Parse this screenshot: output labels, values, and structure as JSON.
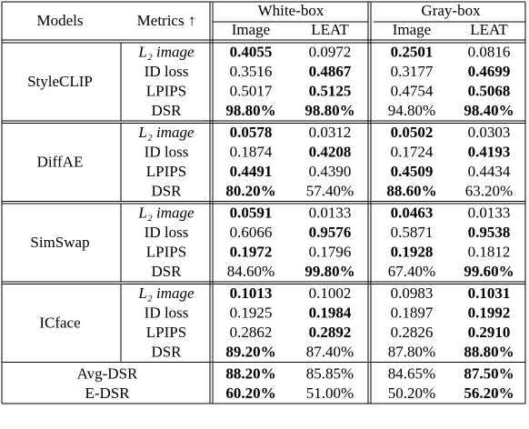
{
  "header": {
    "models": "Models",
    "metrics": "Metrics ↑",
    "groups": [
      "White-box",
      "Gray-box"
    ],
    "columns": [
      "Image",
      "LEAT",
      "Image",
      "LEAT"
    ]
  },
  "groups": [
    {
      "model": "StyleCLIP",
      "rows": [
        {
          "metric": "L₂ image",
          "values": [
            "0.4055",
            "0.0972",
            "0.2501",
            "0.0816"
          ],
          "bold": [
            true,
            false,
            true,
            false
          ]
        },
        {
          "metric": "ID loss",
          "values": [
            "0.3516",
            "0.4867",
            "0.3177",
            "0.4699"
          ],
          "bold": [
            false,
            true,
            false,
            true
          ]
        },
        {
          "metric": "LPIPS",
          "values": [
            "0.5017",
            "0.5125",
            "0.4754",
            "0.5068"
          ],
          "bold": [
            false,
            true,
            false,
            true
          ]
        },
        {
          "metric": "DSR",
          "values": [
            "98.80%",
            "98.80%",
            "94.80%",
            "98.40%"
          ],
          "bold": [
            true,
            true,
            false,
            true
          ]
        }
      ]
    },
    {
      "model": "DiffAE",
      "rows": [
        {
          "metric": "L₂ image",
          "values": [
            "0.0578",
            "0.0312",
            "0.0502",
            "0.0303"
          ],
          "bold": [
            true,
            false,
            true,
            false
          ]
        },
        {
          "metric": "ID loss",
          "values": [
            "0.1874",
            "0.4208",
            "0.1724",
            "0.4193"
          ],
          "bold": [
            false,
            true,
            false,
            true
          ]
        },
        {
          "metric": "LPIPS",
          "values": [
            "0.4491",
            "0.4390",
            "0.4509",
            "0.4434"
          ],
          "bold": [
            true,
            false,
            true,
            false
          ]
        },
        {
          "metric": "DSR",
          "values": [
            "80.20%",
            "57.40%",
            "88.60%",
            "63.20%"
          ],
          "bold": [
            true,
            false,
            true,
            false
          ]
        }
      ]
    },
    {
      "model": "SimSwap",
      "rows": [
        {
          "metric": "L₂ image",
          "values": [
            "0.0591",
            "0.0133",
            "0.0463",
            "0.0133"
          ],
          "bold": [
            true,
            false,
            true,
            false
          ]
        },
        {
          "metric": "ID loss",
          "values": [
            "0.6066",
            "0.9576",
            "0.5871",
            "0.9538"
          ],
          "bold": [
            false,
            true,
            false,
            true
          ]
        },
        {
          "metric": "LPIPS",
          "values": [
            "0.1972",
            "0.1796",
            "0.1928",
            "0.1812"
          ],
          "bold": [
            true,
            false,
            true,
            false
          ]
        },
        {
          "metric": "DSR",
          "values": [
            "84.60%",
            "99.80%",
            "67.40%",
            "99.60%"
          ],
          "bold": [
            false,
            true,
            false,
            true
          ]
        }
      ]
    },
    {
      "model": "ICface",
      "rows": [
        {
          "metric": "L₂ image",
          "values": [
            "0.1013",
            "0.1002",
            "0.0983",
            "0.1031"
          ],
          "bold": [
            true,
            false,
            false,
            true
          ]
        },
        {
          "metric": "ID loss",
          "values": [
            "0.1925",
            "0.1984",
            "0.1897",
            "0.1992"
          ],
          "bold": [
            false,
            true,
            false,
            true
          ]
        },
        {
          "metric": "LPIPS",
          "values": [
            "0.2862",
            "0.2892",
            "0.2826",
            "0.2910"
          ],
          "bold": [
            false,
            true,
            false,
            true
          ]
        },
        {
          "metric": "DSR",
          "values": [
            "89.20%",
            "87.40%",
            "87.80%",
            "88.80%"
          ],
          "bold": [
            true,
            false,
            false,
            true
          ]
        }
      ]
    }
  ],
  "summary": [
    {
      "label": "Avg-DSR",
      "values": [
        "88.20%",
        "85.85%",
        "84.65%",
        "87.50%"
      ],
      "bold": [
        true,
        false,
        false,
        true
      ]
    },
    {
      "label": "E-DSR",
      "values": [
        "60.20%",
        "51.00%",
        "50.20%",
        "56.20%"
      ],
      "bold": [
        true,
        false,
        false,
        true
      ]
    }
  ]
}
